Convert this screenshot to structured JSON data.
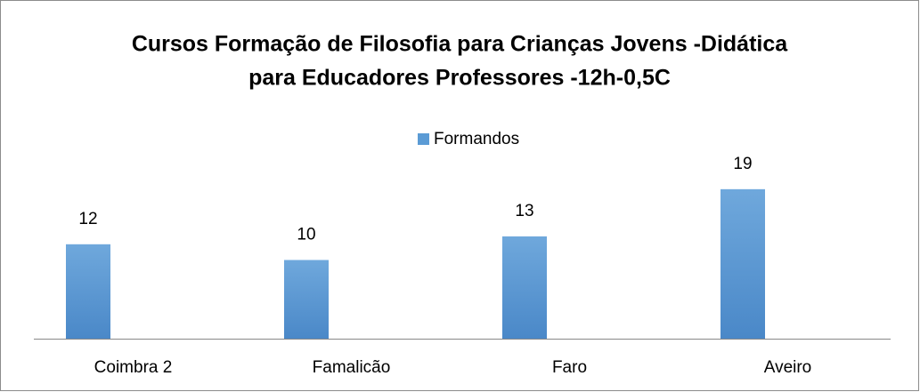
{
  "chart_data": {
    "type": "bar",
    "title": [
      "Cursos Formação de Filosofia para Crianças  Jovens -Didática",
      "para Educadores  Professores -12h-0,5C"
    ],
    "categories": [
      "Coimbra 2",
      "Famalicão",
      "Faro",
      "Aveiro"
    ],
    "series": [
      {
        "name": "Formandos",
        "color": "#5b9bd5",
        "values": [
          12,
          10,
          13,
          19
        ]
      }
    ],
    "ylim": [
      0,
      20
    ],
    "legend": "top",
    "grid": false
  }
}
